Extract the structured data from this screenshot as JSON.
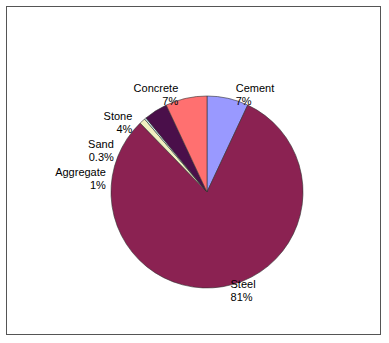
{
  "chart_data": {
    "type": "pie",
    "categories": [
      "Cement",
      "Steel",
      "Aggregate",
      "Sand",
      "Stone",
      "Concrete"
    ],
    "values": [
      7,
      81,
      1,
      0.3,
      4,
      7
    ],
    "value_labels": [
      "7%",
      "81%",
      "1%",
      "0.3%",
      "4%",
      "7%"
    ],
    "colors": [
      "#9999ff",
      "#8b2252",
      "#f0f0c0",
      "#d0f0f0",
      "#4a0f4a",
      "#ff7070"
    ],
    "data_labels": true
  }
}
